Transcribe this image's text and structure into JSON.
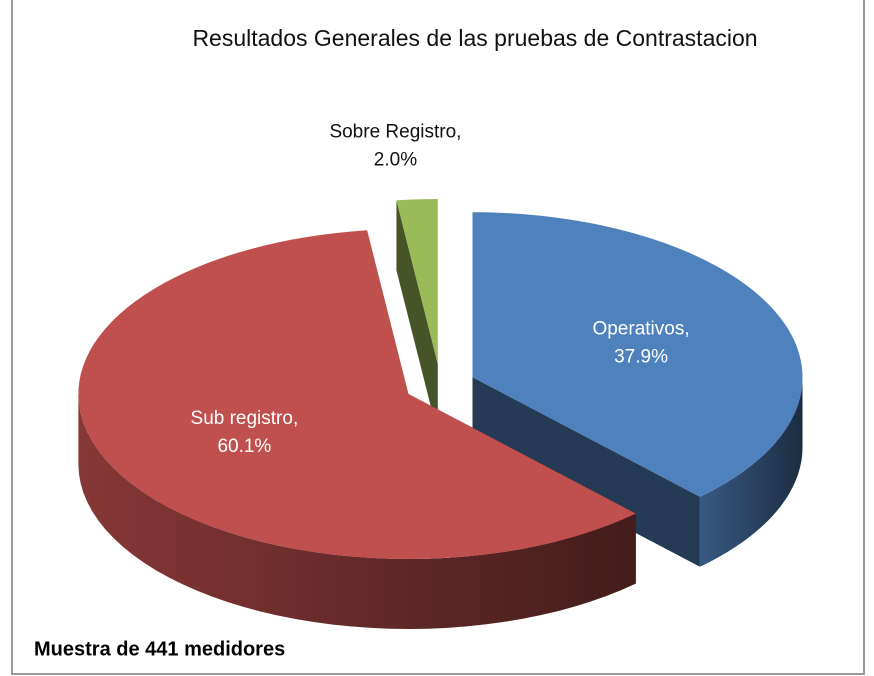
{
  "chart_data": {
    "type": "pie3d",
    "title": "Resultados  Generales de las  pruebas de Contrastacion",
    "categories": [
      "Operativos,",
      "Sub registro,",
      "Sobre Registro,"
    ],
    "values": [
      37.9,
      60.1,
      2.0
    ],
    "value_labels": [
      "37.9%",
      "60.1%",
      "2.0%"
    ],
    "colors": [
      "#4f81bd",
      "#c0504d",
      "#9bbb59"
    ],
    "annotation": "Muestra de 441 medidores"
  }
}
